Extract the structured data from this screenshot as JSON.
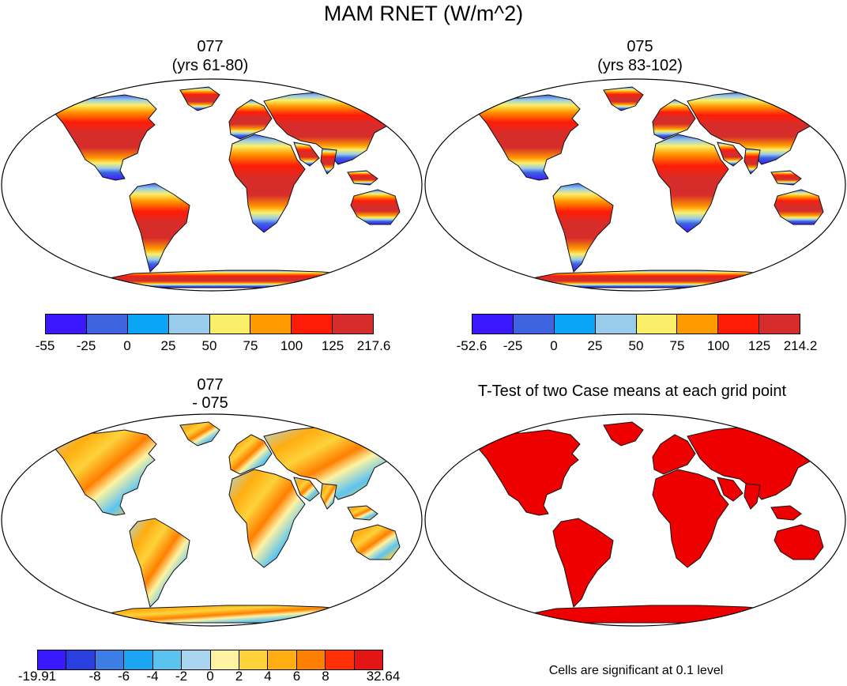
{
  "figure": {
    "title": "MAM RNET (W/m^2)"
  },
  "panels": [
    {
      "id": "case1",
      "title_line1": "077",
      "title_line2": "(yrs 61-80)",
      "colorbar": {
        "labels": [
          "-55",
          "-25",
          "0",
          "25",
          "50",
          "75",
          "100",
          "125",
          "217.6"
        ],
        "colors": [
          "#3b19ff",
          "#3d63e0",
          "#0aa6f5",
          "#99ccea",
          "#fbef6a",
          "#ff9a00",
          "#ff1c07",
          "#d62d2b"
        ]
      }
    },
    {
      "id": "case2",
      "title_line1": "075",
      "title_line2": "(yrs 83-102)",
      "colorbar": {
        "labels": [
          "-52.6",
          "-25",
          "0",
          "25",
          "50",
          "75",
          "100",
          "125",
          "214.2"
        ],
        "colors": [
          "#3b19ff",
          "#3d63e0",
          "#0aa6f5",
          "#99ccea",
          "#fbef6a",
          "#ff9a00",
          "#ff1c07",
          "#d62d2b"
        ]
      }
    },
    {
      "id": "diff",
      "title_line1": "077",
      "title_line2": "- 075",
      "colorbar": {
        "labels": [
          "-19.91",
          "-8",
          "-6",
          "-4",
          "-2",
          "0",
          "2",
          "4",
          "6",
          "8",
          "32.64"
        ],
        "label_slots": [
          0,
          2,
          3,
          4,
          5,
          6,
          7,
          8,
          9,
          10,
          12
        ],
        "colors": [
          "#3b19ff",
          "#2a3fe0",
          "#3c7ee6",
          "#1ba3f4",
          "#5cc3f1",
          "#a9d6ee",
          "#fdf3a2",
          "#fdd23a",
          "#ffad10",
          "#ff7f00",
          "#ff2f06",
          "#e31515"
        ]
      }
    },
    {
      "id": "ttest",
      "title_line1": "T-Test of two Case means at each grid point",
      "note": "Cells are significant at 0.1 level",
      "color": "#ee0000"
    }
  ]
}
